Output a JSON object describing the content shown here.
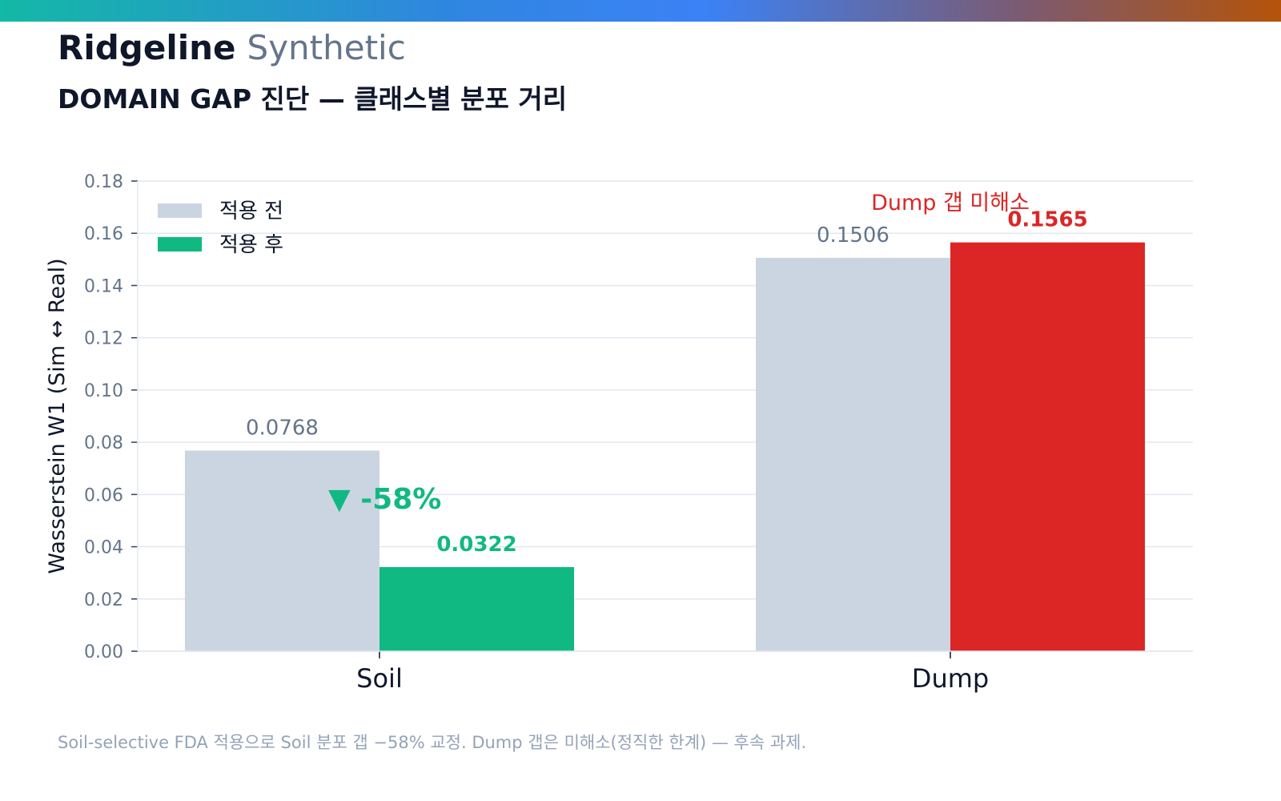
{
  "header": {
    "brand_name": "Ridgeline",
    "brand_sub": "Synthetic",
    "subtitle": "DOMAIN GAP 진단 — 클래스별 분포 거리"
  },
  "footnote": "Soil-selective FDA 적용으로 Soil 분포 갭 −58% 교정. Dump 갭은 미해소(정직한 한계) — 후속 과제.",
  "colors": {
    "before": "#cbd5e1",
    "after_good": "#10b981",
    "after_bad": "#dc2626",
    "grid": "#e2e8f0",
    "axis_text": "#64748b"
  },
  "chart_data": {
    "type": "bar",
    "categories": [
      "Soil",
      "Dump"
    ],
    "series": [
      {
        "name": "적용 전",
        "values": [
          0.0768,
          0.1506
        ],
        "labels": [
          "0.0768",
          "0.1506"
        ]
      },
      {
        "name": "적용 후",
        "values": [
          0.0322,
          0.1565
        ],
        "labels": [
          "0.0322",
          "0.1565"
        ]
      }
    ],
    "ylabel": "Wasserstein W1 (Sim ↔ Real)",
    "xlabel": "",
    "ylim": [
      0,
      0.18
    ],
    "yticks": [
      "0.00",
      "0.02",
      "0.04",
      "0.06",
      "0.08",
      "0.10",
      "0.12",
      "0.14",
      "0.16",
      "0.18"
    ],
    "grid": true,
    "legend_position": "top-left",
    "annotations": [
      {
        "text": "▼ -58%",
        "category": "Soil",
        "color": "#10b981"
      },
      {
        "text": "Dump 갭 미해소",
        "category": "Dump",
        "color": "#dc2626"
      }
    ]
  }
}
